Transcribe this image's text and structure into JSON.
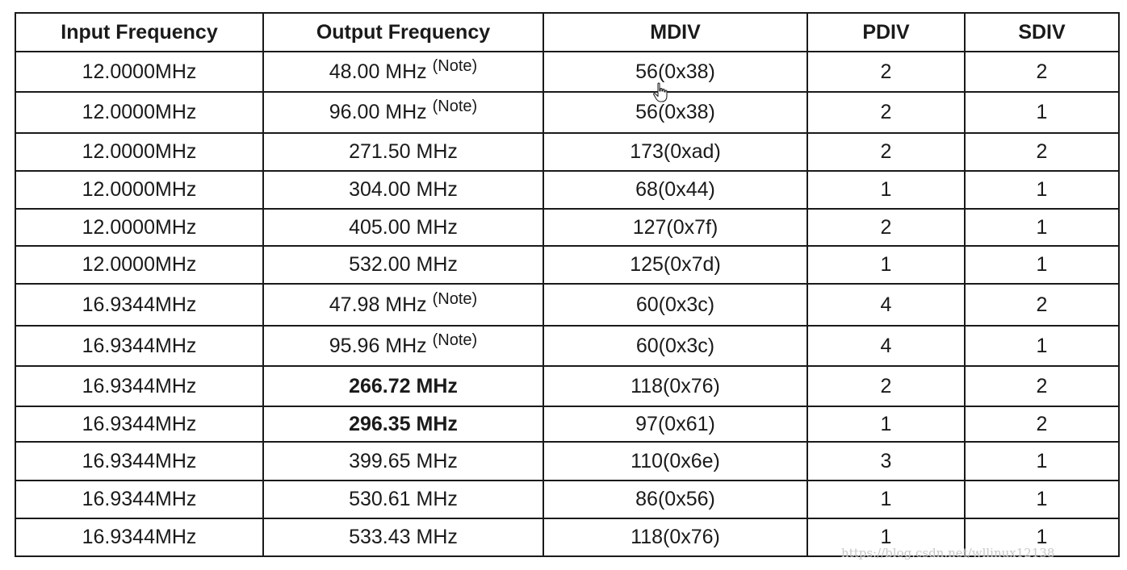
{
  "table": {
    "headers": [
      "Input Frequency",
      "Output Frequency",
      "MDIV",
      "PDIV",
      "SDIV"
    ],
    "note_label": "(Note)",
    "rows": [
      {
        "input": "12.0000MHz",
        "output": "48.00 MHz",
        "note": true,
        "output_bold": false,
        "mdiv": "56(0x38)",
        "mdiv_bold": true,
        "pdiv": "2",
        "sdiv": "2"
      },
      {
        "input": "12.0000MHz",
        "output": "96.00 MHz",
        "note": true,
        "output_bold": false,
        "mdiv": "56(0x38)",
        "mdiv_bold": false,
        "pdiv": "2",
        "sdiv": "1"
      },
      {
        "input": "12.0000MHz",
        "output": "271.50 MHz",
        "note": false,
        "output_bold": false,
        "mdiv": "173(0xad)",
        "mdiv_bold": false,
        "pdiv": "2",
        "sdiv": "2"
      },
      {
        "input": "12.0000MHz",
        "output": "304.00 MHz",
        "note": false,
        "output_bold": false,
        "mdiv": "68(0x44)",
        "mdiv_bold": false,
        "pdiv": "1",
        "sdiv": "1"
      },
      {
        "input": "12.0000MHz",
        "output": "405.00 MHz",
        "note": false,
        "output_bold": false,
        "mdiv": "127(0x7f)",
        "mdiv_bold": false,
        "pdiv": "2",
        "sdiv": "1"
      },
      {
        "input": "12.0000MHz",
        "output": "532.00 MHz",
        "note": false,
        "output_bold": false,
        "mdiv": "125(0x7d)",
        "mdiv_bold": false,
        "pdiv": "1",
        "sdiv": "1"
      },
      {
        "input": "16.9344MHz",
        "output": "47.98 MHz",
        "note": true,
        "output_bold": false,
        "mdiv": "60(0x3c)",
        "mdiv_bold": false,
        "pdiv": "4",
        "sdiv": "2"
      },
      {
        "input": "16.9344MHz",
        "output": "95.96 MHz",
        "note": true,
        "output_bold": false,
        "mdiv": "60(0x3c)",
        "mdiv_bold": false,
        "pdiv": "4",
        "sdiv": "1"
      },
      {
        "input": "16.9344MHz",
        "output": "266.72 MHz",
        "note": false,
        "output_bold": true,
        "mdiv": "118(0x76)",
        "mdiv_bold": false,
        "pdiv": "2",
        "sdiv": "2"
      },
      {
        "input": "16.9344MHz",
        "output": "296.35 MHz",
        "note": false,
        "output_bold": true,
        "mdiv": "97(0x61)",
        "mdiv_bold": false,
        "pdiv": "1",
        "sdiv": "2"
      },
      {
        "input": "16.9344MHz",
        "output": "399.65 MHz",
        "note": false,
        "output_bold": false,
        "mdiv": "110(0x6e)",
        "mdiv_bold": false,
        "pdiv": "3",
        "sdiv": "1"
      },
      {
        "input": "16.9344MHz",
        "output": "530.61 MHz",
        "note": false,
        "output_bold": false,
        "mdiv": "86(0x56)",
        "mdiv_bold": false,
        "pdiv": "1",
        "sdiv": "1"
      },
      {
        "input": "16.9344MHz",
        "output": "533.43 MHz",
        "note": false,
        "output_bold": false,
        "mdiv": "118(0x76)",
        "mdiv_bold": false,
        "pdiv": "1",
        "sdiv": "1"
      }
    ]
  },
  "cursor_icon": "hand-pointer-icon",
  "watermark": "https://blog.csdn.net/wllinux12138"
}
